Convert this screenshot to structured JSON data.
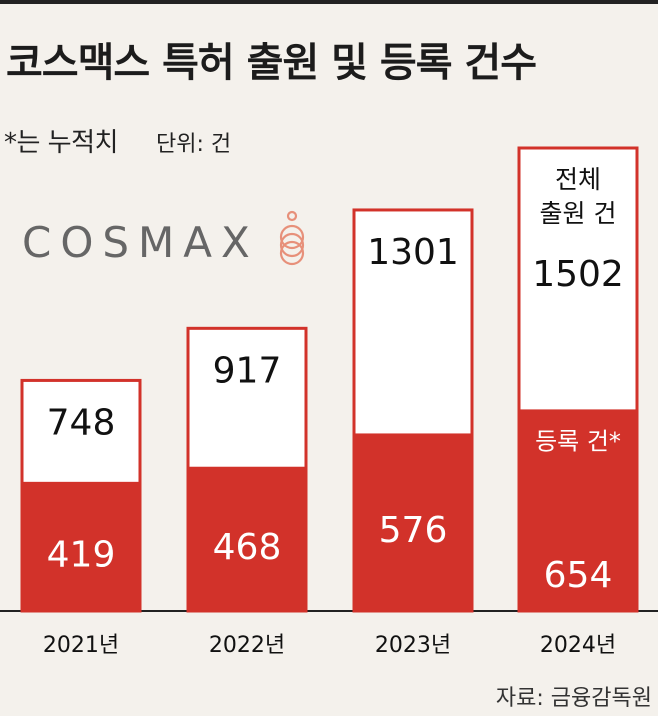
{
  "title": "코스맥스 특허 출원 및 등록 건수",
  "note": "*는 누적치",
  "unit_label": "단위: 건",
  "logo_text": "COSMAX",
  "source": "자료: 금융감독원",
  "annotations": {
    "total_label_line1": "전체",
    "total_label_line2": "출원 건",
    "registered_label": "등록 건*"
  },
  "colors": {
    "registered": "#d2322a",
    "total_border": "#d2322a",
    "total_fill": "#ffffff",
    "background": "#f4f1ec",
    "logo_mark": "#e7907a"
  },
  "chart_data": {
    "type": "bar",
    "title": "코스맥스 특허 출원 및 등록 건수",
    "categories": [
      "2021년",
      "2022년",
      "2023년",
      "2024년"
    ],
    "series": [
      {
        "name": "전체 출원 건",
        "values": [
          748,
          917,
          1301,
          1502
        ]
      },
      {
        "name": "등록 건*",
        "values": [
          419,
          468,
          576,
          654
        ]
      }
    ],
    "xlabel": "",
    "ylabel": "단위: 건",
    "ylim": [
      0,
      1502
    ]
  }
}
